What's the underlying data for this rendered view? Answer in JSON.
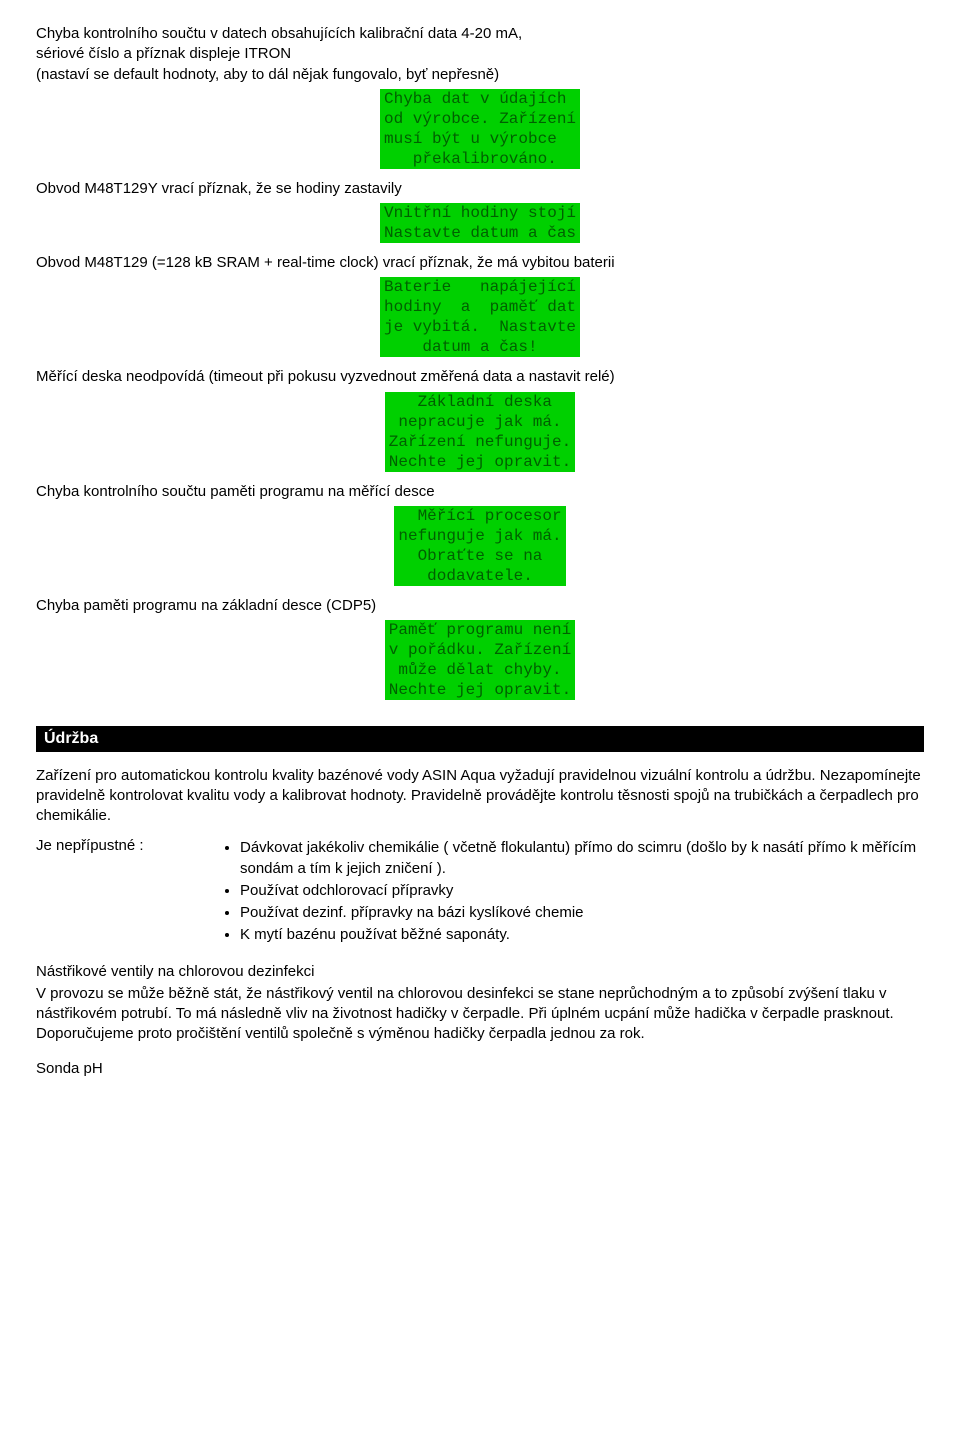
{
  "errors": [
    {
      "name": "err-calibration-checksum",
      "label": "Chyba kontrolního součtu v datech obsahujících kalibrační data 4-20 mA,\nsériové číslo a příznak displeje ITRON\n(nastaví se default hodnoty, aby to dál nějak fungovalo, byť nepřesně)",
      "display": "Chyba dat v údajích\nod výrobce. Zařízení\nmusí být u výrobce\n   překalibrováno."
    },
    {
      "name": "err-clock-stopped",
      "label": "Obvod M48T129Y vrací příznak, že se hodiny zastavily",
      "display": "Vnitřní hodiny stojí\nNastavte datum a čas"
    },
    {
      "name": "err-battery-dead",
      "label": "Obvod M48T129 (=128 kB SRAM + real-time clock) vrací příznak, že má vybitou baterii",
      "display": "Baterie   napájející\nhodiny  a  paměť dat\nje vybitá.  Nastavte\n    datum a čas!"
    },
    {
      "name": "err-measure-timeout",
      "label": "Měřící deska neodpovídá (timeout při pokusu vyzvednout změřená data a nastavit relé)",
      "display": "   Základní deska\n nepracuje jak má.\nZařízení nefunguje.\nNechte jej opravit."
    },
    {
      "name": "err-measure-checksum",
      "label": "Chyba kontrolního součtu paměti programu na měřící desce",
      "display": "  Měřící procesor\nnefunguje jak má.\n  Obraťte se na\n   dodavatele."
    },
    {
      "name": "err-mainboard-memory",
      "label": "Chyba paměti programu na základní desce (CDP5)",
      "display": "Paměť programu není\nv pořádku. Zařízení\n může dělat chyby.\nNechte jej opravit."
    }
  ],
  "maintenance": {
    "heading": "Údržba",
    "intro": "Zařízení pro automatickou kontrolu kvality bazénové vody ASIN Aqua vyžadují pravidelnou vizuální kontrolu a údržbu. Nezapomínejte pravidelně kontrolovat kvalitu vody a kalibrovat hodnoty. Pravidelně provádějte kontrolu těsnosti spojů na trubičkách a čerpadlech pro chemikálie.",
    "forbidden_lead": "Je nepřípustné :",
    "forbidden": [
      "Dávkovat jakékoliv chemikálie ( včetně flokulantu) přímo do scimru (došlo by k nasátí přímo k měřícím sondám a tím k jejich zničení ).",
      "Používat odchlorovací přípravky",
      "Používat dezinf. přípravky na bázi kyslíkové chemie",
      "K mytí bazénu používat běžné saponáty."
    ],
    "valves_head": "Nástřikové ventily na chlorovou dezinfekci",
    "valves_body": "V provozu se může běžně stát, že nástřikový ventil na chlorovou desinfekci se stane neprůchodným a to způsobí zvýšení tlaku v nástřikovém potrubí. To má následně vliv na životnost hadičky v čerpadle. Při úplném ucpání může hadička v čerpadle prasknout. Doporučujeme proto pročištění ventilů společně s výměnou hadičky čerpadla jednou za rok.",
    "sonda_ph": "Sonda pH"
  }
}
